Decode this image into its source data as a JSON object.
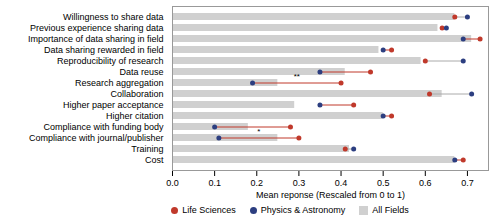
{
  "chart_data": {
    "type": "bar",
    "orientation": "horizontal",
    "categories": [
      "Willingness to share data",
      "Previous experience sharing data",
      "Importance of data sharing in field",
      "Data sharing rewarded in field",
      "Reproducibility of research",
      "Data reuse",
      "Research aggregation",
      "Collaboration",
      "Higher paper acceptance",
      "Higher citation",
      "Compliance with funding body",
      "Compliance with journal/publisher",
      "Training",
      "Cost"
    ],
    "series": [
      {
        "name": "Life Sciences",
        "type": "scatter",
        "marker": "circle",
        "color": "#c0392b",
        "values": [
          0.67,
          0.64,
          0.73,
          0.52,
          0.6,
          0.47,
          0.4,
          0.61,
          0.43,
          0.52,
          0.28,
          0.3,
          0.41,
          0.69
        ]
      },
      {
        "name": "Physics & Astronomy",
        "type": "scatter",
        "marker": "circle",
        "color": "#2c3e80",
        "values": [
          0.7,
          0.65,
          0.69,
          0.5,
          0.69,
          0.35,
          0.19,
          0.71,
          0.35,
          0.5,
          0.1,
          0.11,
          0.43,
          0.67
        ]
      },
      {
        "name": "All Fields",
        "type": "bar",
        "color": "#d0d0d0",
        "values": [
          0.67,
          0.63,
          0.71,
          0.49,
          0.59,
          0.41,
          0.25,
          0.64,
          0.29,
          0.5,
          0.18,
          0.25,
          0.42,
          0.67
        ]
      }
    ],
    "annotations": [
      {
        "category": "Research aggregation",
        "text": "**"
      },
      {
        "category": "Compliance with journal/publisher",
        "text": "*"
      }
    ],
    "xlabel": "Mean reponse (Rescaled from 0 to 1)",
    "xlim": [
      0.0,
      0.75
    ],
    "xticks": [
      {
        "value": 0.0,
        "label": "0.0"
      },
      0.1,
      0.2,
      0.3,
      0.4,
      0.5,
      0.6,
      0.7
    ],
    "legend": "bottom"
  }
}
